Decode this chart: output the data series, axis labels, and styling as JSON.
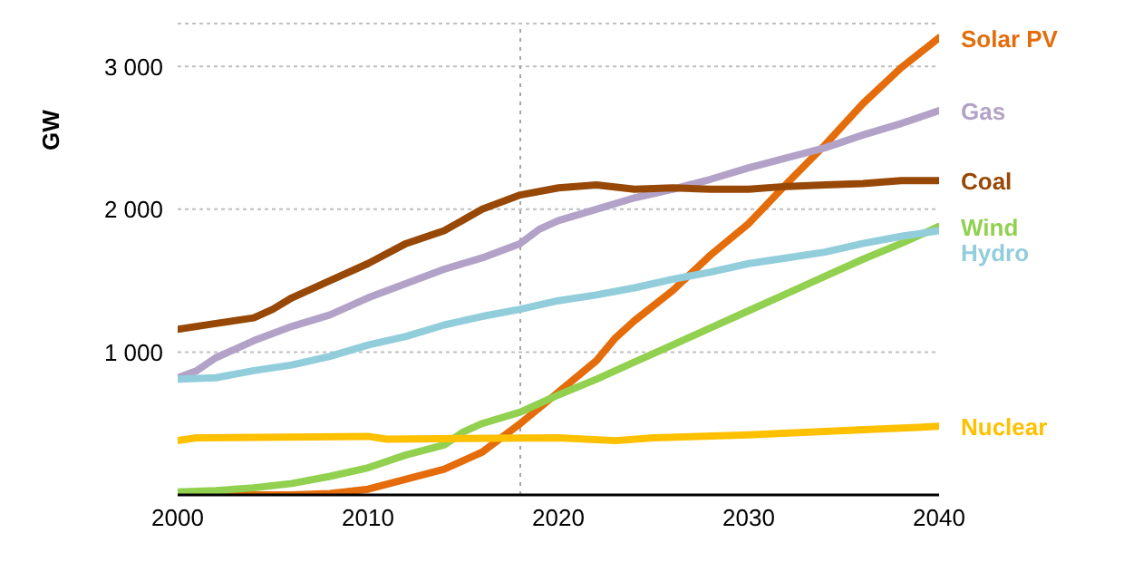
{
  "chart_data": {
    "type": "line",
    "ylabel": "GW",
    "xlim": [
      2000,
      2040
    ],
    "xticks": [
      2000,
      2010,
      2020,
      2030,
      2040
    ],
    "ylim": [
      0,
      3300
    ],
    "yticks": [
      {
        "value": 1000,
        "label": "1 000"
      },
      {
        "value": 2000,
        "label": "2 000"
      },
      {
        "value": 3000,
        "label": "3 000"
      }
    ],
    "grid": "y",
    "legend": false,
    "marker": "none",
    "line_style": "solid",
    "ref_lines": [
      {
        "axis": "x",
        "value": 2018,
        "label": null,
        "color": "#a6a6a6",
        "line_style": "dotted"
      }
    ],
    "series": [
      {
        "name": "Solar PV",
        "color": "#e46c0a",
        "x": [
          2000,
          2006,
          2008,
          2010,
          2012,
          2014,
          2016,
          2018,
          2020,
          2022,
          2023,
          2024,
          2026,
          2028,
          2030,
          2032,
          2034,
          2036,
          2038,
          2040
        ],
        "values": [
          0,
          0,
          10,
          40,
          110,
          180,
          300,
          500,
          720,
          940,
          1100,
          1220,
          1430,
          1680,
          1900,
          2180,
          2450,
          2740,
          2990,
          3200
        ]
      },
      {
        "name": "Gas",
        "color": "#b3a2c7",
        "x": [
          2000,
          2001,
          2002,
          2004,
          2006,
          2008,
          2010,
          2012,
          2014,
          2016,
          2018,
          2019,
          2020,
          2022,
          2024,
          2026,
          2028,
          2030,
          2032,
          2034,
          2036,
          2038,
          2040
        ],
        "values": [
          820,
          870,
          960,
          1080,
          1180,
          1260,
          1380,
          1480,
          1580,
          1660,
          1760,
          1860,
          1920,
          2000,
          2080,
          2140,
          2210,
          2290,
          2360,
          2430,
          2520,
          2600,
          2690
        ]
      },
      {
        "name": "Coal",
        "color": "#974807",
        "x": [
          2000,
          2002,
          2004,
          2005,
          2006,
          2008,
          2010,
          2012,
          2014,
          2016,
          2018,
          2020,
          2022,
          2024,
          2026,
          2028,
          2030,
          2032,
          2034,
          2036,
          2038,
          2040
        ],
        "values": [
          1160,
          1200,
          1240,
          1300,
          1380,
          1500,
          1620,
          1760,
          1850,
          2000,
          2100,
          2150,
          2170,
          2140,
          2150,
          2140,
          2140,
          2160,
          2170,
          2180,
          2200,
          2200
        ]
      },
      {
        "name": "Wind",
        "color": "#92d050",
        "x": [
          2000,
          2002,
          2004,
          2006,
          2008,
          2010,
          2012,
          2014,
          2015,
          2016,
          2018,
          2020,
          2022,
          2024,
          2026,
          2028,
          2030,
          2032,
          2034,
          2036,
          2038,
          2040
        ],
        "values": [
          20,
          30,
          50,
          80,
          130,
          190,
          280,
          350,
          440,
          500,
          580,
          700,
          810,
          930,
          1050,
          1170,
          1290,
          1410,
          1530,
          1650,
          1760,
          1880
        ]
      },
      {
        "name": "Hydro",
        "color": "#92cddc",
        "x": [
          2000,
          2002,
          2004,
          2006,
          2008,
          2010,
          2012,
          2014,
          2016,
          2018,
          2020,
          2022,
          2024,
          2026,
          2028,
          2030,
          2032,
          2034,
          2036,
          2038,
          2040
        ],
        "values": [
          810,
          820,
          870,
          910,
          970,
          1050,
          1110,
          1190,
          1250,
          1300,
          1360,
          1400,
          1450,
          1510,
          1560,
          1620,
          1660,
          1700,
          1760,
          1810,
          1850
        ]
      },
      {
        "name": "Nuclear",
        "color": "#ffc000",
        "x": [
          2000,
          2001,
          2010,
          2011,
          2020,
          2023,
          2025,
          2030,
          2035,
          2040
        ],
        "values": [
          380,
          400,
          410,
          390,
          400,
          380,
          400,
          420,
          450,
          480
        ]
      }
    ]
  }
}
